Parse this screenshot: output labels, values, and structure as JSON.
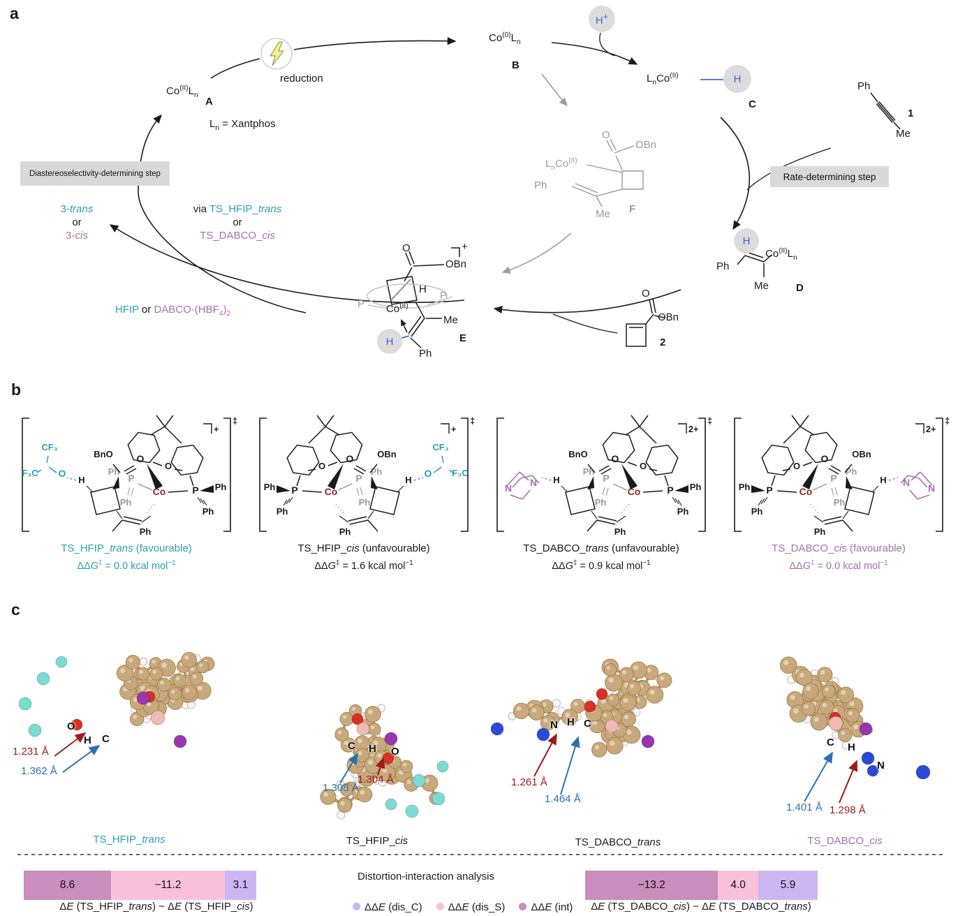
{
  "colors": {
    "teal": "#2a9fb0",
    "purple": "#a470b0",
    "blue_h": "#4a64d8",
    "maroon_co": "#9b2222",
    "annotation_red": "#9b1c1c",
    "annotation_blue": "#2d6fad",
    "gray_faded": "#9a9a9a",
    "box_gray": "#d9d9d9",
    "circle_gray": "#dcdcdc",
    "bar_mauve": "#c98ebc",
    "bar_pink": "#f9c2da",
    "bar_lavender": "#ccb6f2"
  },
  "panel_a": {
    "label": "a",
    "lightning": "reduction",
    "a": {
      "f": "Co<sup>(II)</sup>L<sub>n</sub>",
      "tag": "A"
    },
    "b": {
      "f": "Co<sup>(0)</sup>L<sub>n</sub>",
      "tag": "B"
    },
    "hplus": "H<sup>+</sup>",
    "c": {
      "f": "L<sub>n</sub>Co<sup>(II)</sup>",
      "h": "H",
      "tag": "C"
    },
    "ligand": "L<sub>n</sub> = Xantphos",
    "box_left": "Diastereoselectivity-determining step",
    "box_right": "Rate-determining step",
    "cpd1": {
      "ph": "Ph",
      "me": "Me",
      "tag": "1"
    },
    "cpd2": {
      "o": "O",
      "obn": "OBn",
      "tag": "2"
    },
    "d": {
      "h": "H",
      "ph": "Ph",
      "f": "Co<sup>(II)</sup>L<sub>n</sub>",
      "me": "Me",
      "tag": "D"
    },
    "e": {
      "o": "O",
      "obn": "OBn",
      "h": "H",
      "p_left": "P",
      "p_right": "P",
      "co": "Co<sup>(II)</sup>",
      "me": "Me",
      "hb": "H",
      "ph": "Ph",
      "tag": "E",
      "charge": "+"
    },
    "f": {
      "o": "O",
      "obn": "OBn",
      "lnco": "L<sub>n</sub>Co<sup>(II)</sup>",
      "ph": "Ph",
      "me": "Me",
      "tag": "F"
    },
    "prod": {
      "l1": "3-<i>trans</i>",
      "l2": "or",
      "l3": "3-<i>cis</i>"
    },
    "via": {
      "pre": "via ",
      "t1": "TS_HFIP_<i>trans</i>",
      "mid": "or",
      "t2": "TS_DABCO_<i>cis</i>"
    },
    "reag": {
      "t1": "HFIP",
      "mid": " or ",
      "t2": "DABCO·(HBF<sub>4</sub>)<sub>2</sub>"
    }
  },
  "panel_b": {
    "label": "b",
    "atom_labels": {
      "o": "O",
      "p": "P",
      "co": "Co",
      "ph": "Ph",
      "h": "H",
      "n": "N",
      "bno": "BnO",
      "obn": "OBn",
      "cf3": "CF₃",
      "f3c": "F₃C",
      "ddagger": "‡"
    },
    "structures": [
      {
        "name": "TS_HFIP_<i>trans</i> (favourable)",
        "energy": "ΔΔ<i>G</i><sup>‡</sup> = 0.0 kcal mol<sup>−1</sup>",
        "charge": "+",
        "fragment": "HFIP",
        "side": "left",
        "accent": "#2a9fb0",
        "caption_color": "#2a9fb0"
      },
      {
        "name": "TS_HFIP_<i>cis</i> (unfavourable)",
        "energy": "ΔΔ<i>G</i><sup>‡</sup> = 1.6 kcal mol<sup>−1</sup>",
        "charge": "+",
        "fragment": "HFIP",
        "side": "right",
        "accent": "#2a9fb0",
        "caption_color": "#1a1a1a"
      },
      {
        "name": "TS_DABCO_<i>trans</i> (unfavourable)",
        "energy": "ΔΔ<i>G</i><sup>‡</sup> = 0.9 kcal mol<sup>−1</sup>",
        "charge": "2+",
        "fragment": "DABCO",
        "side": "left",
        "accent": "#a470b0",
        "caption_color": "#1a1a1a"
      },
      {
        "name": "TS_DABCO_<i>cis</i> (favourable)",
        "energy": "ΔΔ<i>G</i><sup>‡</sup> = 0.0 kcal mol<sup>−1</sup>",
        "charge": "2+",
        "fragment": "DABCO",
        "side": "right",
        "accent": "#a470b0",
        "caption_color": "#a470b0"
      }
    ]
  },
  "panel_c": {
    "label": "c",
    "models": [
      {
        "name_html": "TS_HFIP_<i>trans</i>",
        "color": "#2a9fb0",
        "atoms": [
          "O",
          "H",
          "C"
        ],
        "distances": [
          {
            "text": "1.231 Å",
            "color": "#9b1c1c"
          },
          {
            "text": "1.362 Å",
            "color": "#2d6fad"
          }
        ]
      },
      {
        "name_html": "TS_HFIP_<i>cis</i>",
        "color": "#1a1a1a",
        "atoms": [
          "C",
          "H",
          "O"
        ],
        "distances": [
          {
            "text": "1.308 Å",
            "color": "#2d6fad"
          },
          {
            "text": "1.304 Å",
            "color": "#9b1c1c"
          }
        ]
      },
      {
        "name_html": "TS_DABCO_<i>trans</i>",
        "color": "#1a1a1a",
        "atoms": [
          "N",
          "H",
          "C"
        ],
        "distances": [
          {
            "text": "1.261 Å",
            "color": "#9b1c1c"
          },
          {
            "text": "1.464 Å",
            "color": "#2d6fad"
          }
        ]
      },
      {
        "name_html": "TS_DABCO_<i>cis</i>",
        "color": "#a470b0",
        "atoms": [
          "C",
          "H",
          "N"
        ],
        "distances": [
          {
            "text": "1.401 Å",
            "color": "#2d6fad"
          },
          {
            "text": "1.298 Å",
            "color": "#9b1c1c"
          }
        ]
      }
    ]
  },
  "chart_data": [
    {
      "type": "bar",
      "orientation": "horizontal-stacked",
      "unit": "kcal mol−1",
      "title": "ΔE (TS_HFIP_trans) − ΔE (TS_HFIP_cis)",
      "title_html": "Δ<i>E</i> (TS_HFIP_<i>trans</i>) − Δ<i>E</i> (TS_HFIP_<i>cis</i>)",
      "segments": [
        {
          "name": "ΔΔE(int)",
          "value": 8.6,
          "display": "8.6",
          "color": "#c98ebc"
        },
        {
          "name": "ΔΔE(dis_S)",
          "value": -11.2,
          "display": "−11.2",
          "color": "#f9c2da"
        },
        {
          "name": "ΔΔE(dis_C)",
          "value": 3.1,
          "display": "3.1",
          "color": "#ccb6f2"
        }
      ]
    },
    {
      "type": "bar",
      "orientation": "horizontal-stacked",
      "unit": "kcal mol−1",
      "title": "ΔE (TS_DABCO_cis) − ΔE (TS_DABCO_trans)",
      "title_html": "Δ<i>E</i> (TS_DABCO_<i>cis</i>) − Δ<i>E</i> (TS_DABCO_<i>trans</i>)",
      "segments": [
        {
          "name": "ΔΔE(int)",
          "value": -13.2,
          "display": "−13.2",
          "color": "#c98ebc"
        },
        {
          "name": "ΔΔE(dis_S)",
          "value": 4.0,
          "display": "4.0",
          "color": "#f9c2da"
        },
        {
          "name": "ΔΔE(dis_C)",
          "value": 5.9,
          "display": "5.9",
          "color": "#ccb6f2"
        }
      ]
    }
  ],
  "distortion": {
    "title": "Distortion-interaction analysis",
    "legend": [
      {
        "label_html": "ΔΔ<i>E</i> (dis_C)",
        "color": "#ccb6f2"
      },
      {
        "label_html": "ΔΔ<i>E</i> (dis_S)",
        "color": "#f9c2da"
      },
      {
        "label_html": "ΔΔ<i>E</i> (int)",
        "color": "#c98ebc"
      }
    ]
  }
}
